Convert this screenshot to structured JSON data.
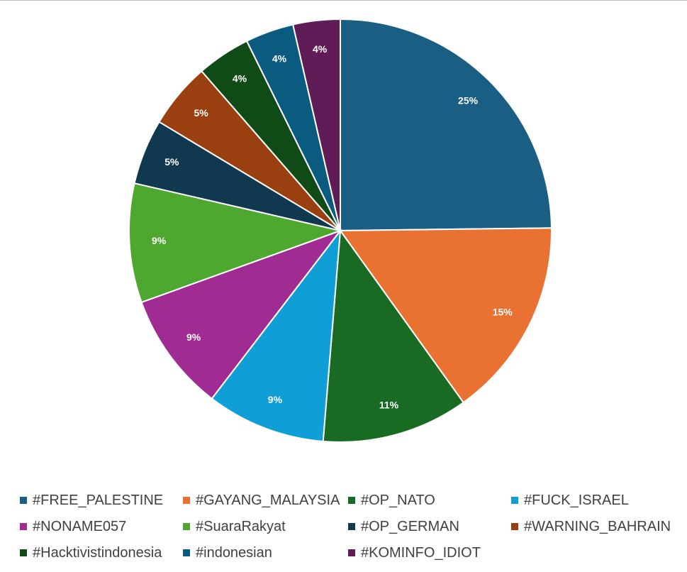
{
  "chart_data": {
    "type": "pie",
    "categories": [
      "#FREE_PALESTINE",
      "#GAYANG_MALAYSIA",
      "#OP_NATO",
      "#FUCK_ISRAEL",
      "#NONAME057",
      "#SuaraRakyat",
      "#OP_GERMAN",
      "#WARNING_BAHRAIN",
      "#Hacktivistindonesia",
      "#indonesian",
      "#KOMINFO_IDIOT"
    ],
    "values": [
      24.8,
      15.3,
      11.2,
      9.1,
      9.1,
      9.1,
      5.0,
      5.0,
      4.1,
      3.7,
      3.6
    ],
    "data_labels": [
      "25%",
      "15%",
      "11%",
      "9%",
      "9%",
      "9%",
      "5%",
      "5%",
      "4%",
      "4%",
      "4%"
    ],
    "colors": [
      "#1b5e84",
      "#e97132",
      "#196b24",
      "#0f9ed5",
      "#a02b93",
      "#4ea72e",
      "#10384f",
      "#9a3f10",
      "#0f4a17",
      "#0b5a7f",
      "#5f1c56"
    ],
    "legend_position": "bottom",
    "title": ""
  }
}
